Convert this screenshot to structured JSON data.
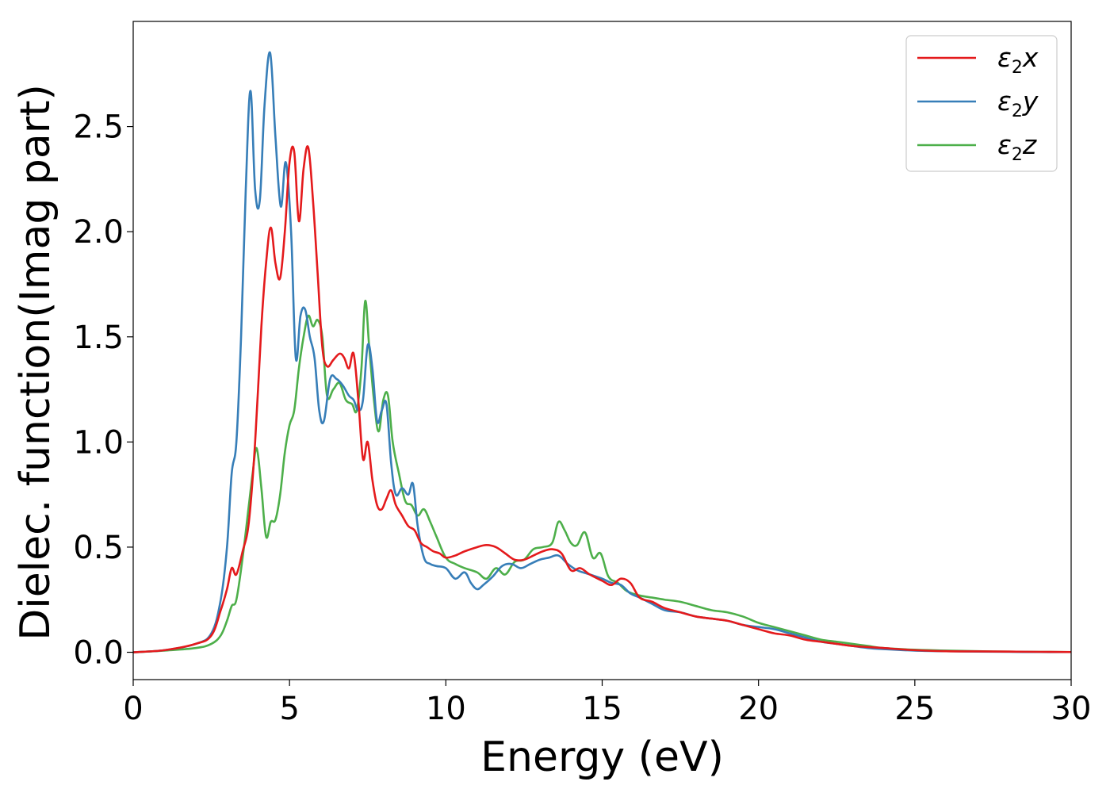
{
  "chart_data": {
    "type": "line",
    "title": "",
    "xlabel": "Energy (eV)",
    "ylabel": "Dielec. function(Imag part)",
    "xlim": [
      0,
      30
    ],
    "ylim": [
      -0.13,
      3.0
    ],
    "xticks": [
      0,
      5,
      10,
      15,
      20,
      25,
      30
    ],
    "yticks": [
      0.0,
      0.5,
      1.0,
      1.5,
      2.0,
      2.5
    ],
    "xtick_labels": [
      "0",
      "5",
      "10",
      "15",
      "20",
      "25",
      "30"
    ],
    "ytick_labels": [
      "0.0",
      "0.5",
      "1.0",
      "1.5",
      "2.0",
      "2.5"
    ],
    "grid": false,
    "legend_position": "top-right",
    "series": [
      {
        "name": "ε₂x",
        "legend": {
          "base": "ε",
          "sub": "2",
          "comp": "x"
        },
        "color": "#e41a1c",
        "x": [
          0,
          1,
          2,
          2.5,
          2.8,
          3.0,
          3.15,
          3.3,
          3.5,
          3.7,
          3.9,
          4.1,
          4.25,
          4.4,
          4.55,
          4.7,
          4.85,
          5.0,
          5.15,
          5.3,
          5.45,
          5.6,
          5.75,
          5.9,
          6.05,
          6.2,
          6.4,
          6.6,
          6.75,
          6.9,
          7.05,
          7.2,
          7.35,
          7.5,
          7.65,
          7.8,
          7.95,
          8.1,
          8.25,
          8.4,
          8.6,
          8.8,
          9.0,
          9.2,
          9.4,
          9.6,
          9.8,
          10.0,
          10.3,
          10.6,
          11.0,
          11.3,
          11.6,
          11.9,
          12.2,
          12.5,
          12.8,
          13.1,
          13.4,
          13.7,
          14.0,
          14.3,
          14.6,
          15.0,
          15.3,
          15.6,
          15.9,
          16.2,
          16.6,
          17.0,
          17.5,
          18.0,
          18.5,
          19.0,
          19.5,
          20.0,
          20.5,
          21.0,
          21.5,
          22.0,
          22.5,
          23.0,
          23.5,
          24.0,
          25.0,
          26.0,
          27.0,
          28.0,
          29.0,
          30.0
        ],
        "y": [
          0.0,
          0.01,
          0.04,
          0.08,
          0.2,
          0.3,
          0.4,
          0.37,
          0.48,
          0.62,
          1.0,
          1.55,
          1.85,
          2.02,
          1.85,
          1.78,
          2.0,
          2.33,
          2.38,
          2.05,
          2.3,
          2.4,
          2.15,
          1.8,
          1.45,
          1.36,
          1.39,
          1.42,
          1.4,
          1.35,
          1.42,
          1.2,
          0.92,
          1.0,
          0.82,
          0.7,
          0.68,
          0.73,
          0.77,
          0.7,
          0.65,
          0.6,
          0.58,
          0.52,
          0.5,
          0.48,
          0.47,
          0.45,
          0.46,
          0.48,
          0.5,
          0.51,
          0.5,
          0.47,
          0.44,
          0.44,
          0.46,
          0.48,
          0.49,
          0.47,
          0.39,
          0.4,
          0.37,
          0.34,
          0.32,
          0.35,
          0.33,
          0.26,
          0.24,
          0.21,
          0.19,
          0.17,
          0.16,
          0.15,
          0.13,
          0.11,
          0.09,
          0.08,
          0.06,
          0.05,
          0.04,
          0.03,
          0.025,
          0.02,
          0.01,
          0.005,
          0.004,
          0.003,
          0.002,
          0.001
        ]
      },
      {
        "name": "ε₂y",
        "legend": {
          "base": "ε",
          "sub": "2",
          "comp": "y"
        },
        "color": "#377eb8",
        "x": [
          0,
          1,
          2,
          2.5,
          2.8,
          3.0,
          3.15,
          3.3,
          3.45,
          3.6,
          3.75,
          3.9,
          4.05,
          4.2,
          4.38,
          4.55,
          4.72,
          4.88,
          5.05,
          5.2,
          5.35,
          5.5,
          5.65,
          5.8,
          5.95,
          6.1,
          6.3,
          6.5,
          6.7,
          6.9,
          7.05,
          7.2,
          7.35,
          7.5,
          7.65,
          7.8,
          7.95,
          8.1,
          8.25,
          8.4,
          8.6,
          8.8,
          8.95,
          9.1,
          9.3,
          9.5,
          9.7,
          10.0,
          10.3,
          10.6,
          10.8,
          11.0,
          11.2,
          11.5,
          11.8,
          12.1,
          12.4,
          12.7,
          13.0,
          13.3,
          13.6,
          13.9,
          14.2,
          14.6,
          15.0,
          15.3,
          15.6,
          15.9,
          16.2,
          16.6,
          17.0,
          17.5,
          18.0,
          18.5,
          19.0,
          19.5,
          20.0,
          20.5,
          21.0,
          21.5,
          22.0,
          22.5,
          23.0,
          23.5,
          24.0,
          25.0,
          26.0,
          27.0,
          28.0,
          29.0,
          30.0
        ],
        "y": [
          0.0,
          0.01,
          0.04,
          0.09,
          0.25,
          0.5,
          0.85,
          1.0,
          1.5,
          2.2,
          2.67,
          2.2,
          2.15,
          2.6,
          2.85,
          2.45,
          2.12,
          2.33,
          2.0,
          1.4,
          1.6,
          1.63,
          1.5,
          1.4,
          1.15,
          1.1,
          1.3,
          1.3,
          1.27,
          1.22,
          1.2,
          1.15,
          1.2,
          1.46,
          1.35,
          1.1,
          1.15,
          1.18,
          0.9,
          0.75,
          0.78,
          0.75,
          0.8,
          0.6,
          0.45,
          0.42,
          0.41,
          0.4,
          0.35,
          0.38,
          0.33,
          0.3,
          0.32,
          0.36,
          0.41,
          0.42,
          0.4,
          0.42,
          0.44,
          0.45,
          0.46,
          0.42,
          0.39,
          0.37,
          0.35,
          0.33,
          0.32,
          0.28,
          0.26,
          0.23,
          0.2,
          0.19,
          0.17,
          0.16,
          0.15,
          0.13,
          0.12,
          0.11,
          0.09,
          0.07,
          0.05,
          0.04,
          0.03,
          0.02,
          0.015,
          0.008,
          0.005,
          0.003,
          0.002,
          0.001,
          0.001
        ]
      },
      {
        "name": "ε₂z",
        "legend": {
          "base": "ε",
          "sub": "2",
          "comp": "z"
        },
        "color": "#4daf4a",
        "x": [
          0,
          1,
          2,
          2.5,
          2.8,
          3.0,
          3.15,
          3.3,
          3.5,
          3.7,
          3.82,
          3.95,
          4.1,
          4.25,
          4.4,
          4.55,
          4.7,
          4.85,
          5.0,
          5.15,
          5.3,
          5.45,
          5.6,
          5.75,
          5.9,
          6.05,
          6.2,
          6.4,
          6.6,
          6.8,
          7.0,
          7.15,
          7.3,
          7.42,
          7.55,
          7.7,
          7.85,
          8.0,
          8.15,
          8.3,
          8.5,
          8.7,
          8.9,
          9.1,
          9.3,
          9.5,
          9.7,
          10.0,
          10.3,
          10.6,
          11.0,
          11.3,
          11.6,
          11.9,
          12.2,
          12.5,
          12.8,
          13.1,
          13.4,
          13.6,
          13.8,
          14.0,
          14.2,
          14.45,
          14.7,
          14.95,
          15.2,
          15.5,
          15.8,
          16.2,
          16.6,
          17.0,
          17.5,
          18.0,
          18.5,
          19.0,
          19.5,
          20.0,
          20.5,
          21.0,
          21.5,
          22.0,
          22.5,
          23.0,
          23.5,
          24.0,
          25.0,
          26.0,
          27.0,
          28.0,
          29.0,
          30.0
        ],
        "y": [
          0.0,
          0.008,
          0.02,
          0.04,
          0.08,
          0.15,
          0.22,
          0.25,
          0.45,
          0.7,
          0.85,
          0.97,
          0.78,
          0.55,
          0.62,
          0.63,
          0.75,
          0.95,
          1.08,
          1.15,
          1.35,
          1.5,
          1.6,
          1.55,
          1.58,
          1.5,
          1.22,
          1.25,
          1.28,
          1.2,
          1.18,
          1.15,
          1.35,
          1.67,
          1.45,
          1.2,
          1.05,
          1.2,
          1.22,
          1.0,
          0.85,
          0.72,
          0.7,
          0.65,
          0.68,
          0.62,
          0.55,
          0.45,
          0.42,
          0.4,
          0.38,
          0.35,
          0.4,
          0.37,
          0.43,
          0.44,
          0.49,
          0.5,
          0.52,
          0.62,
          0.58,
          0.52,
          0.51,
          0.57,
          0.45,
          0.47,
          0.36,
          0.33,
          0.29,
          0.27,
          0.26,
          0.25,
          0.24,
          0.22,
          0.2,
          0.19,
          0.17,
          0.14,
          0.12,
          0.1,
          0.08,
          0.06,
          0.05,
          0.04,
          0.03,
          0.02,
          0.012,
          0.008,
          0.005,
          0.003,
          0.002,
          0.001
        ]
      }
    ]
  }
}
